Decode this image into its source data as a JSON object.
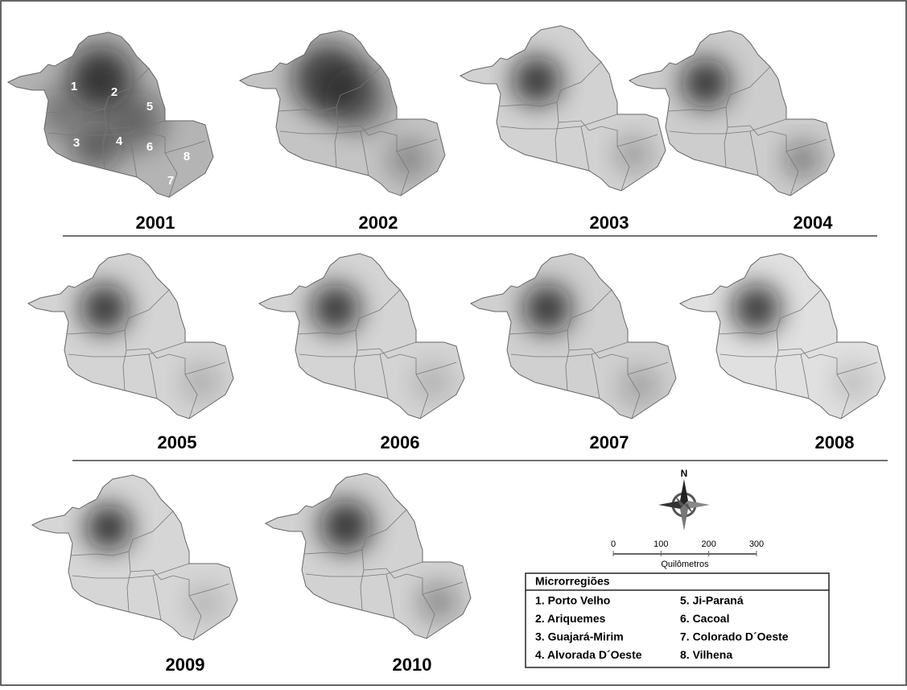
{
  "panels": [
    {
      "year": "2001"
    },
    {
      "year": "2002"
    },
    {
      "year": "2003"
    },
    {
      "year": "2004"
    },
    {
      "year": "2005"
    },
    {
      "year": "2006"
    },
    {
      "year": "2007"
    },
    {
      "year": "2008"
    },
    {
      "year": "2009"
    },
    {
      "year": "2010"
    }
  ],
  "region_labels": [
    "1",
    "2",
    "3",
    "4",
    "5",
    "6",
    "7",
    "8"
  ],
  "compass": "N",
  "scale": {
    "ticks": [
      0,
      100,
      200,
      300
    ],
    "label": "Quilômetros"
  },
  "legend": {
    "title": "Microrregiões",
    "items": [
      "1. Porto Velho",
      "2. Ariquemes",
      "3. Guajará-Mirim",
      "4. Alvorada D´Oeste",
      "5. Ji-Paraná",
      "6. Cacoal",
      "7. Colorado D´Oeste",
      "8. Vilhena"
    ]
  }
}
